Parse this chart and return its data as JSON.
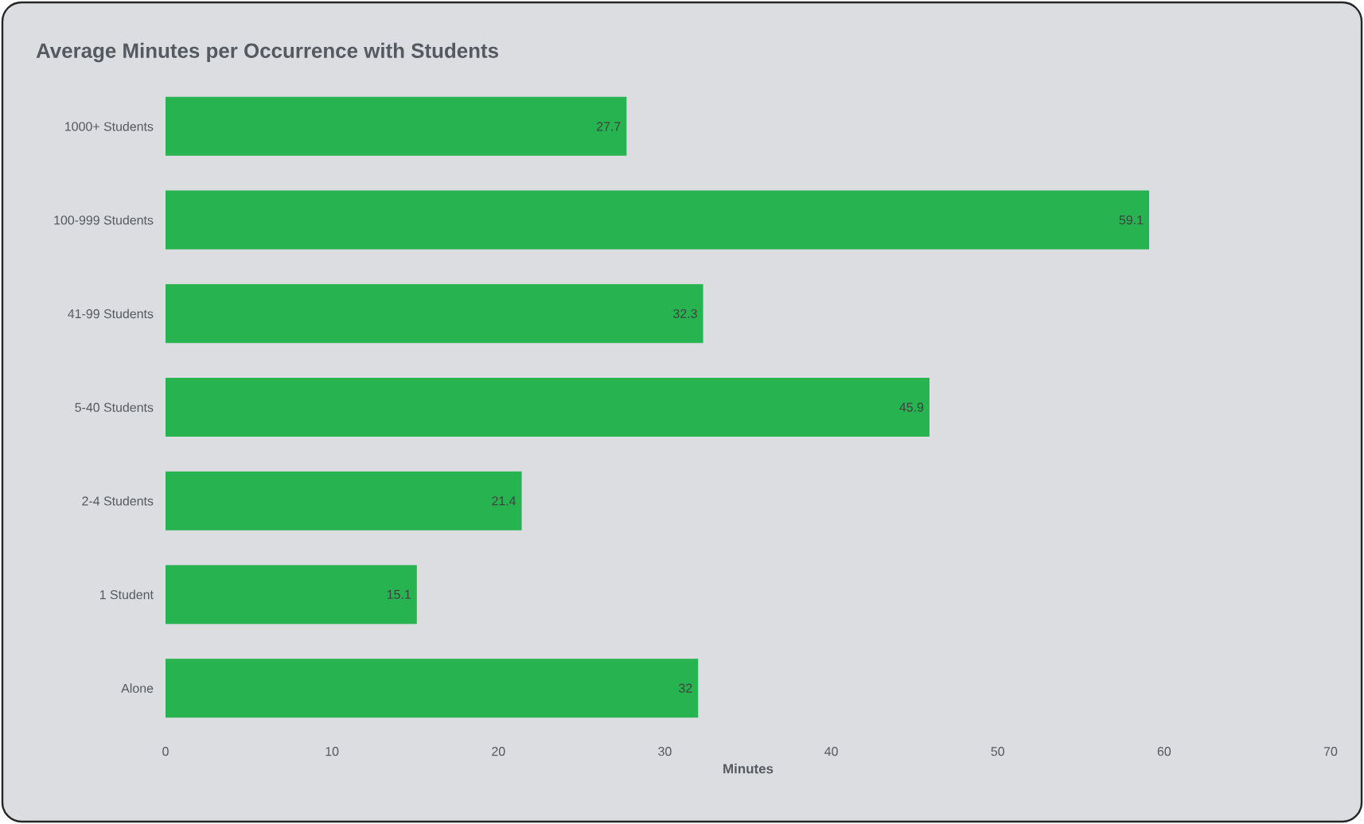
{
  "chart_data": {
    "type": "bar",
    "orientation": "horizontal",
    "title": "Average Minutes per Occurrence with Students",
    "xlabel": "Minutes",
    "categories": [
      "1000+ Students",
      "100-999 Students",
      "41-99 Students",
      "5-40 Students",
      "2-4 Students",
      "1 Student",
      "Alone"
    ],
    "values": [
      27.7,
      59.1,
      32.3,
      45.9,
      21.4,
      15.1,
      32
    ],
    "color": "#27b34f",
    "xlim": [
      0,
      70
    ],
    "xticks": [
      0,
      10,
      20,
      30,
      40,
      50,
      60,
      70
    ],
    "data_labels": true,
    "grid": false
  }
}
